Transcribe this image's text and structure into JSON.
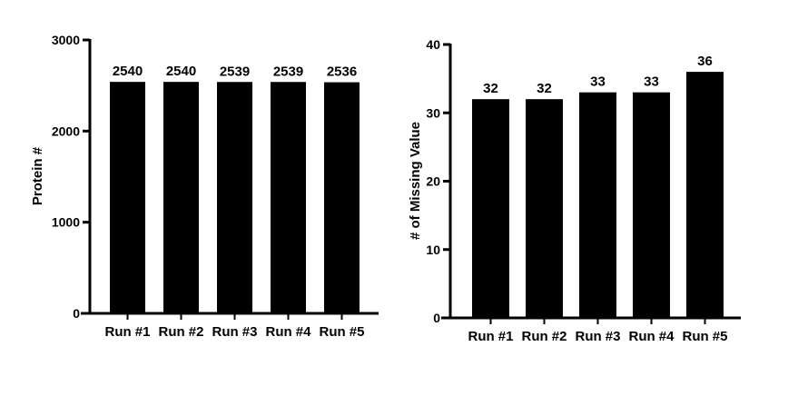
{
  "colors": {
    "bar": "#000000",
    "axis": "#000000",
    "background": "#ffffff"
  },
  "chart_data": [
    {
      "type": "bar",
      "title": "",
      "xlabel": "",
      "ylabel": "Protein #",
      "categories": [
        "Run #1",
        "Run #2",
        "Run #3",
        "Run #4",
        "Run #5"
      ],
      "values": [
        2540,
        2540,
        2539,
        2539,
        2536
      ],
      "data_labels": [
        "2540",
        "2540",
        "2539",
        "2539",
        "2536"
      ],
      "ylim": [
        0,
        3000
      ],
      "yticks": [
        0,
        1000,
        2000,
        3000
      ],
      "ytick_labels": [
        "0",
        "1000",
        "2000",
        "3000"
      ],
      "grid": false,
      "legend": "none"
    },
    {
      "type": "bar",
      "title": "",
      "xlabel": "",
      "ylabel": "# of Missing Value",
      "categories": [
        "Run #1",
        "Run #2",
        "Run #3",
        "Run #4",
        "Run #5"
      ],
      "values": [
        32,
        32,
        33,
        33,
        36
      ],
      "data_labels": [
        "32",
        "32",
        "33",
        "33",
        "36"
      ],
      "ylim": [
        0,
        40
      ],
      "yticks": [
        0,
        10,
        20,
        30,
        40
      ],
      "ytick_labels": [
        "0",
        "10",
        "20",
        "30",
        "40"
      ],
      "grid": false,
      "legend": "none"
    }
  ]
}
